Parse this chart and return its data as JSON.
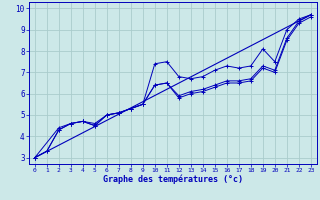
{
  "title": "Graphe des températures (°c)",
  "bg_color": "#cce8e8",
  "grid_color": "#aacccc",
  "line_color": "#0000bb",
  "xlim": [
    -0.5,
    23.5
  ],
  "ylim": [
    2.7,
    10.3
  ],
  "xticks": [
    0,
    1,
    2,
    3,
    4,
    5,
    6,
    7,
    8,
    9,
    10,
    11,
    12,
    13,
    14,
    15,
    16,
    17,
    18,
    19,
    20,
    21,
    22,
    23
  ],
  "yticks": [
    3,
    4,
    5,
    6,
    7,
    8,
    9,
    10
  ],
  "series": [
    {
      "x": [
        0,
        1,
        2,
        3,
        4,
        5,
        6,
        7,
        8,
        9,
        10,
        11,
        12,
        13,
        14,
        15,
        16,
        17,
        18,
        19,
        20,
        21,
        22,
        23
      ],
      "y": [
        3.0,
        3.3,
        4.3,
        4.6,
        4.7,
        4.6,
        5.0,
        5.1,
        5.3,
        5.5,
        7.4,
        7.5,
        6.8,
        6.7,
        6.8,
        7.1,
        7.3,
        7.2,
        7.3,
        8.1,
        7.5,
        9.0,
        9.5,
        9.7
      ],
      "marker": "+"
    },
    {
      "x": [
        0,
        1,
        2,
        3,
        4,
        5,
        6,
        7,
        8,
        9,
        10,
        11,
        12,
        13,
        14,
        15,
        16,
        17,
        18,
        19,
        20,
        21,
        22,
        23
      ],
      "y": [
        3.0,
        3.3,
        4.3,
        4.6,
        4.7,
        4.5,
        5.0,
        5.1,
        5.3,
        5.5,
        6.4,
        6.5,
        5.8,
        6.0,
        6.1,
        6.3,
        6.5,
        6.5,
        6.6,
        7.2,
        7.0,
        8.5,
        9.3,
        9.6
      ],
      "marker": "+"
    },
    {
      "x": [
        0,
        2,
        3,
        4,
        5,
        6,
        7,
        8,
        9,
        10,
        11,
        12,
        13,
        14,
        15,
        16,
        17,
        18,
        19,
        20,
        21,
        22,
        23
      ],
      "y": [
        3.0,
        4.4,
        4.6,
        4.7,
        4.5,
        5.0,
        5.1,
        5.3,
        5.5,
        6.4,
        6.5,
        5.9,
        6.1,
        6.2,
        6.4,
        6.6,
        6.6,
        6.7,
        7.3,
        7.1,
        8.6,
        9.4,
        9.7
      ],
      "marker": "+"
    },
    {
      "x": [
        0,
        23
      ],
      "y": [
        3.0,
        9.7
      ],
      "marker": null
    }
  ],
  "figsize": [
    3.2,
    2.0
  ],
  "dpi": 100
}
